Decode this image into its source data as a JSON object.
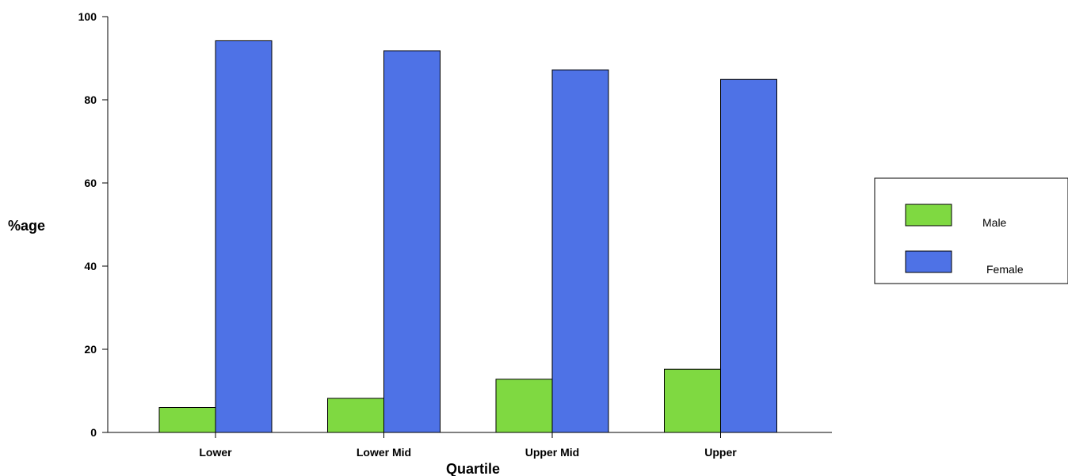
{
  "chart_data": {
    "type": "bar",
    "title": "",
    "xlabel": "Quartile",
    "ylabel": "%age",
    "categories": [
      "Lower",
      "Lower Mid",
      "Upper Mid",
      "Upper"
    ],
    "series": [
      {
        "name": "Male",
        "color": "#7fd941",
        "values": [
          6,
          8.2,
          12.8,
          15.2
        ]
      },
      {
        "name": "Female",
        "color": "#4e72e6",
        "values": [
          94.2,
          91.8,
          87.2,
          84.9
        ]
      }
    ],
    "ylim": [
      0,
      100
    ],
    "yticks": [
      "0",
      "20",
      "40",
      "60",
      "80",
      "100"
    ],
    "grid": false,
    "legend_position": "right"
  }
}
